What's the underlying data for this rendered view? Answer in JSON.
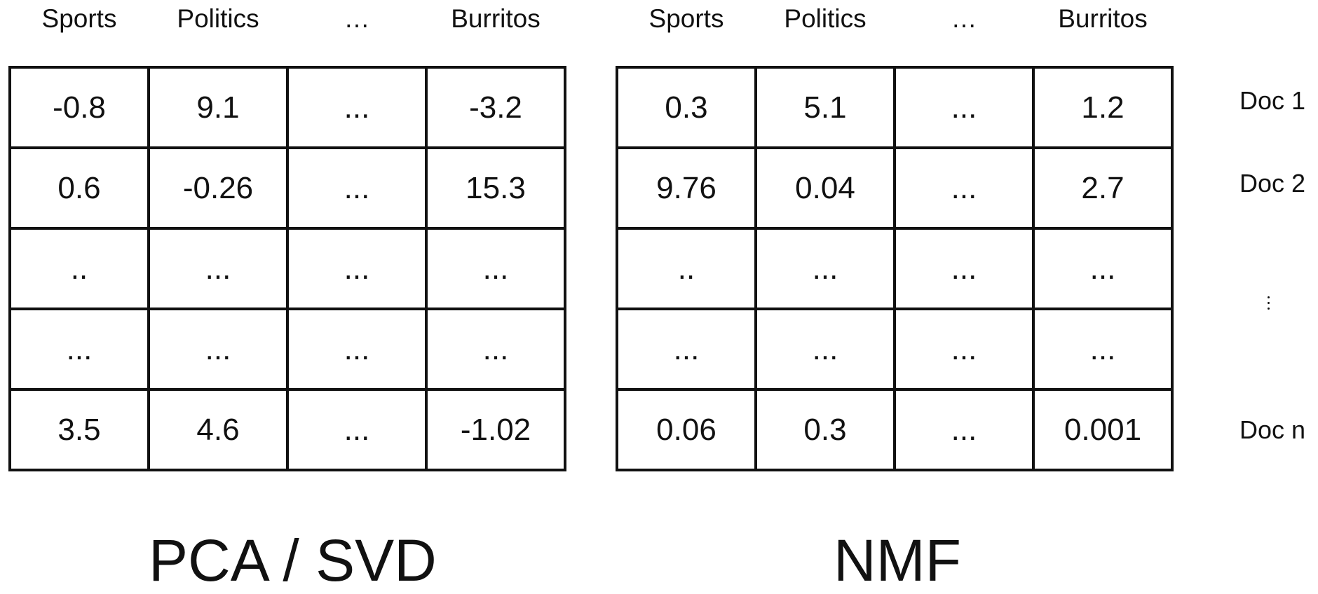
{
  "pca": {
    "headers": [
      "Sports",
      "Politics",
      "…",
      "Burritos"
    ],
    "rows": [
      [
        "-0.8",
        "9.1",
        "...",
        "-3.2"
      ],
      [
        "0.6",
        "-0.26",
        "...",
        "15.3"
      ],
      [
        "..",
        "...",
        "...",
        "..."
      ],
      [
        "...",
        "...",
        "...",
        "..."
      ],
      [
        "3.5",
        "4.6",
        "...",
        "-1.02"
      ]
    ],
    "title": "PCA / SVD"
  },
  "nmf": {
    "headers": [
      "Sports",
      "Politics",
      "…",
      "Burritos"
    ],
    "rows": [
      [
        "0.3",
        "5.1",
        "...",
        "1.2"
      ],
      [
        "9.76",
        "0.04",
        "...",
        "2.7"
      ],
      [
        "..",
        "...",
        "...",
        "..."
      ],
      [
        "...",
        "...",
        "...",
        "..."
      ],
      [
        "0.06",
        "0.3",
        "...",
        "0.001"
      ]
    ],
    "title": "NMF"
  },
  "docs": {
    "labels": [
      "Doc 1",
      "Doc 2",
      "Doc n"
    ],
    "ellipsis_icon": "vertical-ellipsis-icon"
  }
}
